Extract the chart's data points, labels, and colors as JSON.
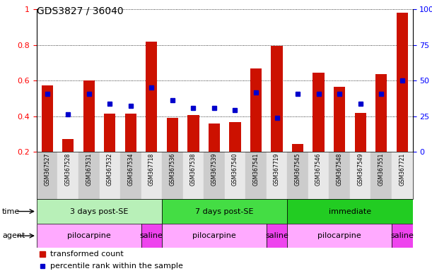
{
  "title": "GDS3827 / 36040",
  "samples": [
    "GSM367527",
    "GSM367528",
    "GSM367531",
    "GSM367532",
    "GSM367534",
    "GSM367718",
    "GSM367536",
    "GSM367538",
    "GSM367539",
    "GSM367540",
    "GSM367541",
    "GSM367719",
    "GSM367545",
    "GSM367546",
    "GSM367548",
    "GSM367549",
    "GSM367551",
    "GSM367721"
  ],
  "red_values": [
    0.575,
    0.27,
    0.6,
    0.415,
    0.415,
    0.82,
    0.39,
    0.405,
    0.36,
    0.365,
    0.67,
    0.795,
    0.245,
    0.645,
    0.565,
    0.42,
    0.635,
    0.98
  ],
  "blue_values": [
    0.525,
    0.41,
    0.525,
    0.47,
    0.46,
    0.56,
    0.49,
    0.445,
    0.445,
    0.435,
    0.535,
    0.39,
    0.525,
    0.525,
    0.525,
    0.47,
    0.525,
    0.6
  ],
  "time_groups": [
    {
      "label": "3 days post-SE",
      "start": 0,
      "end": 6,
      "color": "#b8f0b8"
    },
    {
      "label": "7 days post-SE",
      "start": 6,
      "end": 12,
      "color": "#44dd44"
    },
    {
      "label": "immediate",
      "start": 12,
      "end": 18,
      "color": "#22cc22"
    }
  ],
  "agent_groups": [
    {
      "label": "pilocarpine",
      "start": 0,
      "end": 5,
      "color": "#ffaaff"
    },
    {
      "label": "saline",
      "start": 5,
      "end": 6,
      "color": "#ee44ee"
    },
    {
      "label": "pilocarpine",
      "start": 6,
      "end": 11,
      "color": "#ffaaff"
    },
    {
      "label": "saline",
      "start": 11,
      "end": 12,
      "color": "#ee44ee"
    },
    {
      "label": "pilocarpine",
      "start": 12,
      "end": 17,
      "color": "#ffaaff"
    },
    {
      "label": "saline",
      "start": 17,
      "end": 18,
      "color": "#ee44ee"
    }
  ],
  "ymin": 0.2,
  "ymax": 1.0,
  "yticks_left": [
    0.2,
    0.4,
    0.6,
    0.8,
    1.0
  ],
  "ytick_labels_left": [
    "0.2",
    "0.4",
    "0.6",
    "0.8",
    "1"
  ],
  "yticks_right_pct": [
    0,
    25,
    50,
    75,
    100
  ],
  "ytick_labels_right": [
    "0",
    "25",
    "50",
    "75",
    "100%"
  ],
  "bar_color": "#cc1100",
  "dot_color": "#0000cc",
  "label_transformed": "transformed count",
  "label_percentile": "percentile rank within the sample",
  "bar_width": 0.55
}
